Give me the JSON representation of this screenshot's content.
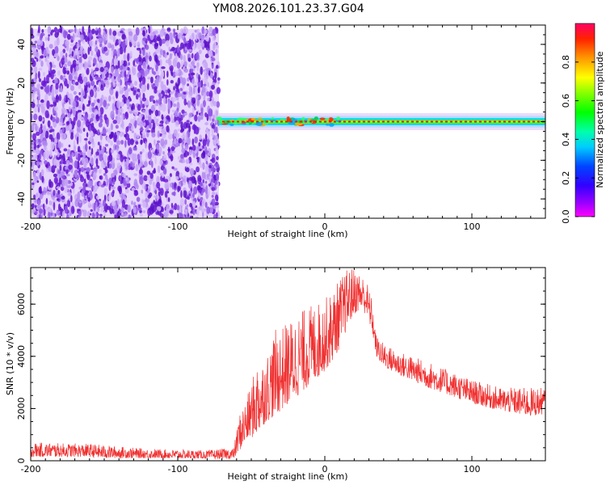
{
  "figure": {
    "title": "YM08.2026.101.23.37.G04"
  },
  "chart_data": [
    {
      "type": "heatmap",
      "name": "spectrogram",
      "xlabel": "Height of straight line (km)",
      "ylabel": "Frequency (Hz)",
      "xlim": [
        -200,
        150
      ],
      "ylim": [
        -50,
        50
      ],
      "xticks": [
        -200,
        -100,
        0,
        100
      ],
      "yticks": [
        -40,
        -20,
        0,
        20,
        40
      ],
      "x_tick_labels": [
        "-200",
        "-100",
        "0",
        "100"
      ],
      "y_tick_labels": [
        "-40",
        "-20",
        "0",
        "20",
        "40"
      ],
      "noise_region": {
        "x_start": -200,
        "x_end": -72,
        "freq_min": -50,
        "freq_max": 48,
        "color": "#6a1ad6"
      },
      "signal_band": {
        "x_start": -72,
        "x_end": 150,
        "center_freq": 0,
        "half_width": 2
      },
      "colorbar": {
        "label": "Normalized spectral amplitude",
        "range": [
          0,
          1
        ],
        "ticks": [
          0.0,
          0.2,
          0.4,
          0.6,
          0.8
        ],
        "tick_labels": [
          "0.0",
          "0.2",
          "0.4",
          "0.6",
          "0.8"
        ]
      }
    },
    {
      "type": "line",
      "name": "snr",
      "xlabel": "Height of straight line (km)",
      "ylabel": "SNR (10 * v/v)",
      "xlim": [
        -200,
        150
      ],
      "ylim": [
        0,
        7400
      ],
      "xticks": [
        -200,
        -100,
        0,
        100
      ],
      "yticks": [
        0,
        2000,
        4000,
        6000
      ],
      "x_tick_labels": [
        "-200",
        "-100",
        "0",
        "100"
      ],
      "y_tick_labels": [
        "0",
        "2000",
        "4000",
        "6000"
      ],
      "color": "#f03030",
      "series": [
        {
          "name": "SNR",
          "envelope_x": [
            -200,
            -160,
            -150,
            -120,
            -80,
            -62,
            -58,
            -52,
            -46,
            -40,
            -34,
            -28,
            -20,
            -12,
            -4,
            4,
            10,
            16,
            20,
            24,
            28,
            32,
            35,
            40,
            50,
            70,
            100,
            120,
            140,
            150
          ],
          "envelope_low": [
            150,
            150,
            100,
            100,
            80,
            60,
            400,
            800,
            1000,
            1500,
            1700,
            2000,
            2400,
            2800,
            3200,
            3700,
            4300,
            5200,
            5600,
            5800,
            5600,
            5000,
            4000,
            3600,
            3300,
            2800,
            2200,
            1900,
            1700,
            1800
          ],
          "envelope_high": [
            700,
            650,
            600,
            450,
            400,
            500,
            1800,
            2600,
            3800,
            4000,
            5000,
            5200,
            5600,
            5900,
            6100,
            6400,
            7000,
            7400,
            7400,
            7200,
            7000,
            6200,
            4800,
            4500,
            4200,
            3800,
            3100,
            2800,
            2800,
            2800
          ]
        }
      ]
    }
  ]
}
